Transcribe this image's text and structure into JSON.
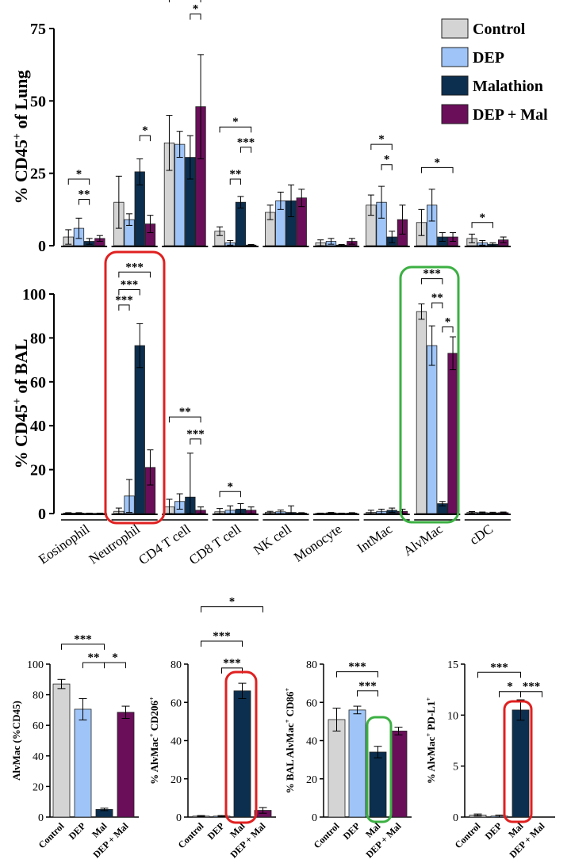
{
  "colors": {
    "control": "#d4d4d4",
    "dep": "#9fc5f8",
    "malathion": "#0c2f4f",
    "dep_mal": "#6a0e5a",
    "highlight_red": "#e02020",
    "highlight_green": "#3cb043"
  },
  "legend": {
    "items": [
      {
        "label": "Control",
        "color": "#d4d4d4"
      },
      {
        "label": "DEP",
        "color": "#9fc5f8"
      },
      {
        "label": "Malathion",
        "color": "#0c2f4f"
      },
      {
        "label": "DEP + Mal",
        "color": "#6a0e5a"
      }
    ]
  },
  "chart_data": [
    {
      "id": "lung",
      "type": "bar",
      "ylabel_main": "% CD45",
      "ylabel_sup": "+",
      "ylabel_tail": " of Lung",
      "ylim": [
        0,
        75
      ],
      "yticks": [
        0,
        25,
        50,
        75
      ],
      "categories": [
        "Eosinophil",
        "Neutrophil",
        "CD4 T cell",
        "CD8 T cell",
        "NK cell",
        "Monocyte",
        "IntMac",
        "AlvMac",
        "cDC"
      ],
      "series": [
        {
          "name": "Control",
          "values": [
            3.0,
            15.0,
            35.5,
            5.0,
            11.5,
            1.0,
            14.0,
            8.0,
            2.5
          ],
          "errors": [
            2.5,
            9.0,
            9.5,
            1.5,
            2.5,
            1.0,
            3.5,
            4.5,
            1.5
          ]
        },
        {
          "name": "DEP",
          "values": [
            6.0,
            9.0,
            35.0,
            1.0,
            15.5,
            1.5,
            15.0,
            14.0,
            1.0
          ],
          "errors": [
            3.5,
            2.0,
            4.5,
            0.8,
            3.0,
            1.0,
            5.5,
            5.5,
            0.8
          ]
        },
        {
          "name": "Malathion",
          "values": [
            1.5,
            25.5,
            30.5,
            15.0,
            15.5,
            0.2,
            3.0,
            3.0,
            0.5
          ],
          "errors": [
            1.0,
            4.5,
            7.5,
            2.0,
            5.5,
            0.2,
            2.0,
            1.5,
            0.5
          ]
        },
        {
          "name": "DEP + Mal",
          "values": [
            2.5,
            7.5,
            48.0,
            0.2,
            16.5,
            1.5,
            9.0,
            3.0,
            2.0
          ],
          "errors": [
            1.0,
            3.0,
            18.0,
            0.2,
            3.0,
            1.0,
            5.0,
            1.5,
            1.0
          ]
        }
      ],
      "significance": [
        {
          "cat": 0,
          "from": 0,
          "to": 2,
          "label": "*",
          "y": 23
        },
        {
          "cat": 0,
          "from": 1,
          "to": 2,
          "label": "**",
          "y": 16
        },
        {
          "cat": 1,
          "from": 2,
          "to": 3,
          "label": "*",
          "y": 38
        },
        {
          "cat": 2,
          "from": 0,
          "to": 3,
          "label": "*",
          "y": 86
        },
        {
          "cat": 2,
          "from": 2,
          "to": 3,
          "label": "*",
          "y": 80
        },
        {
          "cat": 3,
          "from": 0,
          "to": 3,
          "label": "*",
          "y": 41
        },
        {
          "cat": 3,
          "from": 2,
          "to": 3,
          "label": "***",
          "y": 34
        },
        {
          "cat": 3,
          "from": 1,
          "to": 2,
          "label": "**",
          "y": 23
        },
        {
          "cat": 6,
          "from": 0,
          "to": 2,
          "label": "*",
          "y": 35
        },
        {
          "cat": 6,
          "from": 1,
          "to": 2,
          "label": "*",
          "y": 28
        },
        {
          "cat": 7,
          "from": 0,
          "to": 3,
          "label": "*",
          "y": 27
        },
        {
          "cat": 8,
          "from": 0,
          "to": 2,
          "label": "*",
          "y": 8
        }
      ]
    },
    {
      "id": "bal",
      "type": "bar",
      "ylabel_main": "% CD45",
      "ylabel_sup": "+",
      "ylabel_tail": " of BAL",
      "ylim": [
        0,
        100
      ],
      "yticks": [
        0,
        20,
        40,
        60,
        80,
        100
      ],
      "categories": [
        "Eosinophil",
        "Neutrophil",
        "CD4 T cell",
        "CD8 T cell",
        "NK cell",
        "Monocyte",
        "IntMac",
        "AlvMac",
        "cDC"
      ],
      "series": [
        {
          "name": "Control",
          "values": [
            0.2,
            1.0,
            3.0,
            0.8,
            0.5,
            0.1,
            0.5,
            92.0,
            0.5
          ],
          "errors": [
            0.2,
            1.5,
            3.5,
            1.5,
            0.5,
            0.1,
            1.0,
            3.5,
            0.4
          ]
        },
        {
          "name": "DEP",
          "values": [
            0.2,
            8.0,
            5.5,
            1.5,
            0.8,
            0.3,
            1.0,
            76.5,
            0.4
          ],
          "errors": [
            0.2,
            7.5,
            3.5,
            2.0,
            0.8,
            0.2,
            1.0,
            9.0,
            0.3
          ]
        },
        {
          "name": "Malathion",
          "values": [
            0.1,
            76.5,
            7.5,
            2.0,
            0.5,
            0.1,
            1.5,
            4.5,
            0.3
          ],
          "errors": [
            0.1,
            10.0,
            20.0,
            2.5,
            3.0,
            0.1,
            1.0,
            1.0,
            0.3
          ]
        },
        {
          "name": "DEP + Mal",
          "values": [
            0.1,
            21.0,
            1.5,
            1.5,
            0.2,
            0.2,
            1.0,
            73.0,
            0.4
          ],
          "errors": [
            0.1,
            8.0,
            1.5,
            1.5,
            0.2,
            0.2,
            1.0,
            7.5,
            0.3
          ]
        }
      ],
      "significance": [
        {
          "cat": 1,
          "from": 0,
          "to": 3,
          "label": "***",
          "y": 110
        },
        {
          "cat": 1,
          "from": 0,
          "to": 2,
          "label": "***",
          "y": 102
        },
        {
          "cat": 1,
          "from": 0,
          "to": 1,
          "label": "***",
          "y": 95
        },
        {
          "cat": 2,
          "from": 0,
          "to": 3,
          "label": "**",
          "y": 44
        },
        {
          "cat": 2,
          "from": 2,
          "to": 3,
          "label": "***",
          "y": 34
        },
        {
          "cat": 3,
          "from": 0,
          "to": 2,
          "label": "*",
          "y": 10
        },
        {
          "cat": 7,
          "from": 0,
          "to": 2,
          "label": "***",
          "y": 107
        },
        {
          "cat": 7,
          "from": 1,
          "to": 2,
          "label": "**",
          "y": 96
        },
        {
          "cat": 7,
          "from": 2,
          "to": 3,
          "label": "*",
          "y": 85
        }
      ]
    },
    {
      "id": "alvmac",
      "type": "bar",
      "ylabel_main": "AlvMac (%CD45)",
      "ylabel_sup": "",
      "ylabel_tail": "",
      "ylim": [
        0,
        100
      ],
      "yticks": [
        0,
        20,
        40,
        60,
        80,
        100
      ],
      "categories": [
        "Control",
        "DEP",
        "Mal",
        "DEP + Mal"
      ],
      "values": [
        87.0,
        70.5,
        5.0,
        68.5
      ],
      "errors": [
        3.0,
        7.0,
        0.8,
        4.0
      ],
      "significance": [
        {
          "from": 0,
          "to": 2,
          "label": "***",
          "y": 113
        },
        {
          "from": 1,
          "to": 2,
          "label": "**",
          "y": 101
        },
        {
          "from": 2,
          "to": 3,
          "label": "*",
          "y": 101
        }
      ]
    },
    {
      "id": "cd206",
      "type": "bar",
      "ylabel_main": "% AlvMac",
      "ylabel_sup": "+",
      "ylabel_tail": " CD206",
      "ylabel_sup2": "+",
      "ylim": [
        0,
        80
      ],
      "yticks": [
        0,
        20,
        40,
        60,
        80
      ],
      "categories": [
        "Control",
        "DEP",
        "Mal",
        "DEP + Mal"
      ],
      "values": [
        0.5,
        0.5,
        66.0,
        3.5
      ],
      "errors": [
        0.3,
        0.3,
        4.0,
        1.5
      ],
      "significance": [
        {
          "from": 0,
          "to": 3,
          "label": "*",
          "y": 110
        },
        {
          "from": 0,
          "to": 2,
          "label": "***",
          "y": 92
        },
        {
          "from": 1,
          "to": 2,
          "label": "***",
          "y": 78
        }
      ]
    },
    {
      "id": "cd86",
      "type": "bar",
      "ylabel_main": "% BAL AlvMac",
      "ylabel_sup": "+",
      "ylabel_tail": " CD86",
      "ylabel_sup2": "+",
      "ylim": [
        0,
        80
      ],
      "yticks": [
        0,
        20,
        40,
        60,
        80
      ],
      "categories": [
        "Control",
        "DEP",
        "Mal",
        "DEP + Mal"
      ],
      "values": [
        51.0,
        56.0,
        34.0,
        45.0
      ],
      "errors": [
        6.0,
        2.0,
        3.0,
        2.0
      ],
      "significance": [
        {
          "from": 0,
          "to": 2,
          "label": "***",
          "y": 76
        },
        {
          "from": 1,
          "to": 2,
          "label": "***",
          "y": 66
        }
      ]
    },
    {
      "id": "pdl1",
      "type": "bar",
      "ylabel_main": "% AlvMac",
      "ylabel_sup": "+",
      "ylabel_tail": " PD-L1",
      "ylabel_sup2": "+",
      "ylim": [
        0,
        15
      ],
      "yticks": [
        0,
        5,
        10,
        15
      ],
      "categories": [
        "Control",
        "DEP",
        "Mal",
        "DEP + Mal"
      ],
      "values": [
        0.2,
        0.1,
        10.5,
        0.0
      ],
      "errors": [
        0.1,
        0.1,
        1.0,
        0.0
      ],
      "significance": [
        {
          "from": 0,
          "to": 2,
          "label": "***",
          "y": 14.2
        },
        {
          "from": 1,
          "to": 2,
          "label": "*",
          "y": 12.3
        },
        {
          "from": 2,
          "to": 3,
          "label": "***",
          "y": 12.3
        }
      ]
    }
  ]
}
